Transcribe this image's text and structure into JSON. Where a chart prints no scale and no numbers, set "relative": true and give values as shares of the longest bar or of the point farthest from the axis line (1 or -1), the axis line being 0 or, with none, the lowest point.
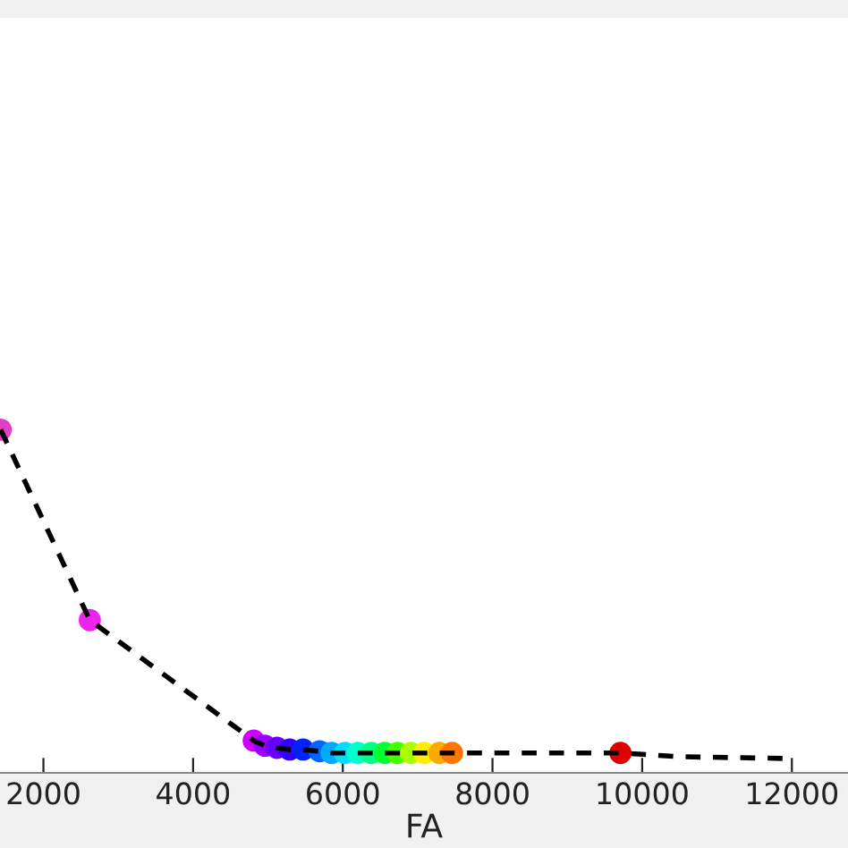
{
  "chart_data": {
    "type": "scatter",
    "xlabel": "FA",
    "relative": true,
    "tick_labels": "x",
    "grid": false,
    "legend": false,
    "xlim": [
      1420,
      12750
    ],
    "xticks": [
      2000,
      4000,
      6000,
      8000,
      10000,
      12000
    ],
    "series": [
      {
        "type": "line",
        "color": "#000000",
        "line_style": "dashed",
        "marker": "none",
        "x": [
          1430,
          2620,
          4810,
          4960,
          5120,
          5290,
          5470,
          5690,
          5850,
          6030,
          6200,
          6380,
          6560,
          6730,
          6910,
          7090,
          7290,
          7460,
          9710,
          10500,
          11900
        ],
        "values": [
          1,
          0.445,
          0.094,
          0.079,
          0.073,
          0.068,
          0.068,
          0.063,
          0.058,
          0.058,
          0.058,
          0.058,
          0.058,
          0.058,
          0.058,
          0.058,
          0.058,
          0.058,
          0.058,
          0.047,
          0.042
        ]
      },
      {
        "marker": "circle",
        "x": [
          1430,
          2620,
          4810,
          4960,
          5120,
          5290,
          5470,
          5690,
          5850,
          6030,
          6200,
          6380,
          6560,
          6730,
          6910,
          7090,
          7290,
          7460,
          9710
        ],
        "values": [
          1,
          0.445,
          0.094,
          0.079,
          0.073,
          0.068,
          0.068,
          0.063,
          0.058,
          0.058,
          0.058,
          0.058,
          0.058,
          0.058,
          0.058,
          0.058,
          0.058,
          0.058,
          0.058
        ],
        "colors": [
          "#e040c8",
          "#ee22ee",
          "#cc00ff",
          "#9900ff",
          "#6600ff",
          "#3300ff",
          "#0022ff",
          "#0066ff",
          "#00aaff",
          "#00ddff",
          "#00ffcc",
          "#00ff88",
          "#00ff33",
          "#44ff00",
          "#aaff00",
          "#ffee00",
          "#ffaa00",
          "#ff7700",
          "#dd0000"
        ]
      }
    ]
  }
}
